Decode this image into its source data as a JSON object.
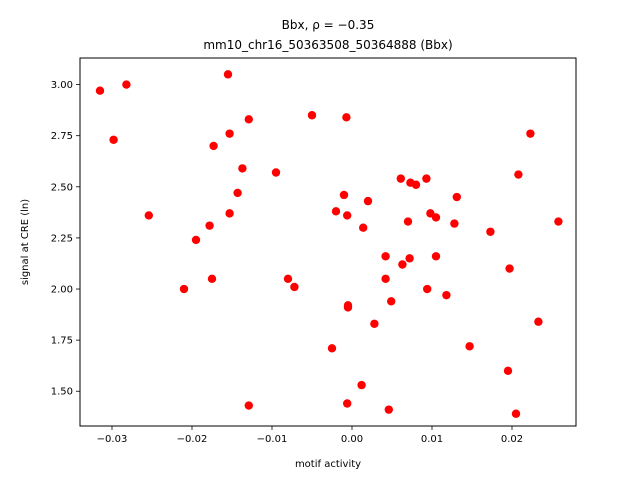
{
  "chart_data": {
    "type": "scatter",
    "title_line1": "Bbx, ρ = −0.35",
    "title_line2": "mm10_chr16_50363508_50364888 (Bbx)",
    "xlabel": "motif activity",
    "ylabel": "signal at CRE (ln)",
    "xlim": [
      -0.034,
      0.028
    ],
    "ylim": [
      1.33,
      3.13
    ],
    "xticks": [
      -0.03,
      -0.02,
      -0.01,
      0.0,
      0.01,
      0.02
    ],
    "xtick_labels": [
      "−0.03",
      "−0.02",
      "−0.01",
      "0.00",
      "0.01",
      "0.02"
    ],
    "yticks": [
      1.5,
      1.75,
      2.0,
      2.25,
      2.5,
      2.75,
      3.0
    ],
    "ytick_labels": [
      "1.50",
      "1.75",
      "2.00",
      "2.25",
      "2.50",
      "2.75",
      "3.00"
    ],
    "grid": false,
    "marker_color": "#ff0000",
    "points": [
      {
        "x": -0.0315,
        "y": 2.97
      },
      {
        "x": -0.0282,
        "y": 3.0
      },
      {
        "x": -0.0298,
        "y": 2.73
      },
      {
        "x": -0.0254,
        "y": 2.36
      },
      {
        "x": -0.021,
        "y": 2.0
      },
      {
        "x": -0.0195,
        "y": 2.24
      },
      {
        "x": -0.0178,
        "y": 2.31
      },
      {
        "x": -0.0175,
        "y": 2.05
      },
      {
        "x": -0.0173,
        "y": 2.7
      },
      {
        "x": -0.0155,
        "y": 3.05
      },
      {
        "x": -0.0153,
        "y": 2.76
      },
      {
        "x": -0.0153,
        "y": 2.37
      },
      {
        "x": -0.0143,
        "y": 2.47
      },
      {
        "x": -0.0137,
        "y": 2.59
      },
      {
        "x": -0.0129,
        "y": 2.83
      },
      {
        "x": -0.0129,
        "y": 1.43
      },
      {
        "x": -0.0095,
        "y": 2.57
      },
      {
        "x": -0.008,
        "y": 2.05
      },
      {
        "x": -0.0072,
        "y": 2.01
      },
      {
        "x": -0.005,
        "y": 2.85
      },
      {
        "x": -0.0025,
        "y": 1.71
      },
      {
        "x": -0.002,
        "y": 2.38
      },
      {
        "x": -0.001,
        "y": 2.46
      },
      {
        "x": -0.0007,
        "y": 2.84
      },
      {
        "x": -0.0006,
        "y": 2.36
      },
      {
        "x": -0.0005,
        "y": 1.92
      },
      {
        "x": -0.0005,
        "y": 1.91
      },
      {
        "x": -0.0006,
        "y": 1.44
      },
      {
        "x": 0.0012,
        "y": 1.53
      },
      {
        "x": 0.0014,
        "y": 2.3
      },
      {
        "x": 0.002,
        "y": 2.43
      },
      {
        "x": 0.0028,
        "y": 1.83
      },
      {
        "x": 0.0042,
        "y": 2.16
      },
      {
        "x": 0.0042,
        "y": 2.05
      },
      {
        "x": 0.0046,
        "y": 1.41
      },
      {
        "x": 0.0049,
        "y": 1.94
      },
      {
        "x": 0.0061,
        "y": 2.54
      },
      {
        "x": 0.0063,
        "y": 2.12
      },
      {
        "x": 0.007,
        "y": 2.33
      },
      {
        "x": 0.0072,
        "y": 2.15
      },
      {
        "x": 0.0073,
        "y": 2.52
      },
      {
        "x": 0.008,
        "y": 2.51
      },
      {
        "x": 0.0093,
        "y": 2.54
      },
      {
        "x": 0.0094,
        "y": 2.0
      },
      {
        "x": 0.0098,
        "y": 2.37
      },
      {
        "x": 0.0105,
        "y": 2.35
      },
      {
        "x": 0.0105,
        "y": 2.16
      },
      {
        "x": 0.0118,
        "y": 1.97
      },
      {
        "x": 0.0128,
        "y": 2.32
      },
      {
        "x": 0.0131,
        "y": 2.45
      },
      {
        "x": 0.0147,
        "y": 1.72
      },
      {
        "x": 0.0173,
        "y": 2.28
      },
      {
        "x": 0.0195,
        "y": 1.6
      },
      {
        "x": 0.0197,
        "y": 2.1
      },
      {
        "x": 0.0205,
        "y": 1.39
      },
      {
        "x": 0.0208,
        "y": 2.56
      },
      {
        "x": 0.0223,
        "y": 2.76
      },
      {
        "x": 0.0233,
        "y": 1.84
      },
      {
        "x": 0.0258,
        "y": 2.33
      }
    ]
  }
}
